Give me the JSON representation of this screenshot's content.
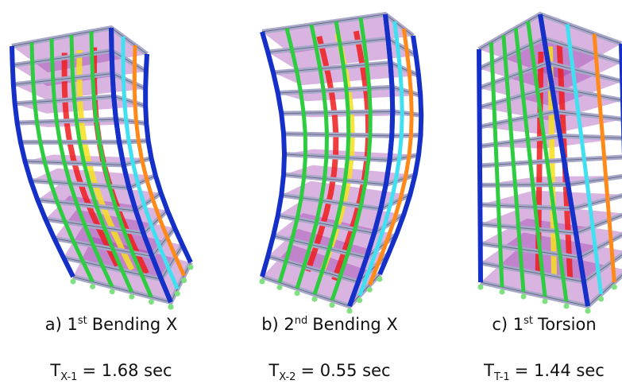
{
  "panels": [
    {
      "caption": {
        "label": "a) 1",
        "sup": "st",
        "text": "Bending X"
      },
      "period": {
        "symbol": "T",
        "sub": "X-1",
        "value": "= 1.68 sec"
      }
    },
    {
      "caption": {
        "label": "b) 2",
        "sup": "nd",
        "text": "Bending X"
      },
      "period": {
        "symbol": "T",
        "sub": "X-2",
        "value": "= 0.55 sec"
      }
    },
    {
      "caption": {
        "label": "c) 1",
        "sup": "st",
        "text": "Torsion"
      },
      "period": {
        "symbol": "T",
        "sub": "T-1",
        "value": "= 1.44 sec"
      }
    }
  ]
}
